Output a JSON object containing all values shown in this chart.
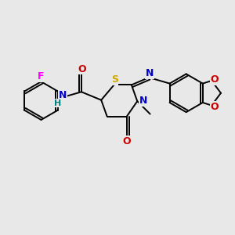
{
  "background_color": "#e8e8e8",
  "atom_colors": {
    "C": "#000000",
    "N": "#0000cc",
    "O": "#cc0000",
    "S": "#ccaa00",
    "F": "#ff00ff",
    "H": "#008080",
    "bond": "#000000"
  },
  "figsize": [
    3.0,
    3.0
  ],
  "dpi": 100,
  "lw": 1.4,
  "fs": 8.5
}
